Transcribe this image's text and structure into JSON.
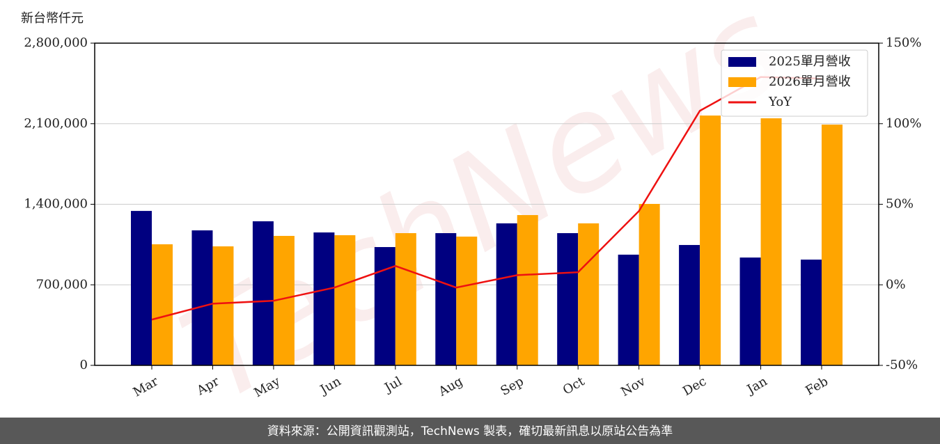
{
  "chart_data": {
    "type": "bar",
    "y_label": "新台幣仟元",
    "watermark": "TechNews",
    "source": "資料來源：公開資訊觀測站，TechNews 製表，確切最新訊息以原站公告為準",
    "categories": [
      "Mar",
      "Apr",
      "May",
      "Jun",
      "Jul",
      "Aug",
      "Sep",
      "Oct",
      "Nov",
      "Dec",
      "Jan",
      "Feb"
    ],
    "series": [
      {
        "name": "2025單月營收",
        "color": "#000080",
        "type": "bar",
        "values": [
          1342000,
          1173000,
          1252000,
          1155000,
          1028000,
          1149000,
          1234000,
          1149000,
          962000,
          1046000,
          937000,
          919000
        ]
      },
      {
        "name": "2026單月營收",
        "color": "#ffa500",
        "type": "bar",
        "values": [
          1052000,
          1034000,
          1125000,
          1131000,
          1149000,
          1119000,
          1306000,
          1234000,
          1403000,
          2171000,
          2147000,
          2092000
        ]
      },
      {
        "name": "YoY",
        "color": "#ee1111",
        "type": "line",
        "axis": "y2",
        "values": [
          -21.6,
          -11.7,
          -9.9,
          -1.7,
          11.7,
          -1.7,
          6.0,
          7.8,
          45.8,
          108,
          129,
          128
        ]
      }
    ],
    "ylim": [
      0,
      2800000
    ],
    "yticks": [
      0,
      {
        "value": 700000,
        "label": "700,000"
      },
      {
        "value": 1400000,
        "label": "1,400,000"
      },
      {
        "value": 2100000,
        "label": "2,100,000"
      },
      {
        "value": 2800000,
        "label": "2,800,000"
      }
    ],
    "y2lim": [
      -50,
      150
    ],
    "y2ticks": [
      {
        "value": -50,
        "label": "-50%"
      },
      {
        "value": 0,
        "label": "0%"
      },
      {
        "value": 50,
        "label": "50%"
      },
      {
        "value": 100,
        "label": "100%"
      },
      {
        "value": 150,
        "label": "150%"
      }
    ],
    "grid": true,
    "legend": "upper right"
  }
}
